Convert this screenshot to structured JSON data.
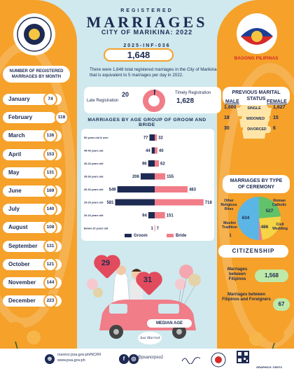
{
  "header": {
    "kicker": "REGISTERED",
    "title": "MARRIAGES",
    "subtitle": "CITY OF MARIKINA: 2022",
    "reference": "2025-INF-036",
    "total": "1,648",
    "description": "There were 1,648 total registered marriages in the City of Marikina that is equivalent to 5 marriages per day in 2022."
  },
  "registration": {
    "late_value": "20",
    "late_label": "Late Registration",
    "timely_label": "Timely Registration",
    "timely_value": "1,628"
  },
  "logos": {
    "left": "PHILIPPINE STATISTICS AUTHORITY",
    "right": "BAGONG PILIPINAS"
  },
  "months": {
    "title": "NUMBER OF REGISTERED MARRIAGES BY MONTH",
    "items": [
      {
        "label": "January",
        "value": "74"
      },
      {
        "label": "February",
        "value": "118"
      },
      {
        "label": "March",
        "value": "136"
      },
      {
        "label": "April",
        "value": "153"
      },
      {
        "label": "May",
        "value": "131"
      },
      {
        "label": "June",
        "value": "169"
      },
      {
        "label": "July",
        "value": "140"
      },
      {
        "label": "August",
        "value": "108"
      },
      {
        "label": "September",
        "value": "131"
      },
      {
        "label": "October",
        "value": "121"
      },
      {
        "label": "November",
        "value": "144"
      },
      {
        "label": "December",
        "value": "223"
      }
    ]
  },
  "previous_status": {
    "title": "PREVIOUS MARITAL STATUS",
    "male_label": "MALE",
    "female_label": "FEMALE",
    "rows": [
      {
        "label": "SINGLE",
        "male": "1,600",
        "female": "1,627"
      },
      {
        "label": "WIDOWED",
        "male": "18",
        "female": "15"
      },
      {
        "label": "DIVORCED",
        "male": "30",
        "female": "6"
      }
    ]
  },
  "ceremony": {
    "title": "MARRIAGES BY TYPE OF CEREMONY",
    "labels": {
      "other": "Other Religious Rites",
      "catholic": "Roman Catholic",
      "muslim": "Muslim Tradition",
      "civil": "Civil Wedding"
    },
    "values": {
      "other": "634",
      "catholic": "527",
      "muslim": "1",
      "civil": "486"
    }
  },
  "citizenship": {
    "title": "CITIZENSHIP",
    "filipino_label": "Marriages between Filipinos",
    "filipino_value": "1,568",
    "foreign_label": "Marriages between Filipinos and Foreigners",
    "foreign_value": "67"
  },
  "median_age": {
    "label": "MEDIAN AGE",
    "groom": "31",
    "bride": "29"
  },
  "car_sign": "Just Married",
  "footer": {
    "url1": "rssoncr.psa.gov.ph/NCRII",
    "url2": "www.psa.gov.ph",
    "social": "@psancrpso2",
    "credit": "GRAPHICS: CENT3"
  },
  "chart_data": {
    "type": "bar",
    "title": "MARRIAGES BY AGE GROUP OF GROOM AND BRIDE",
    "categories": [
      "50 years old & over",
      "45-49 years old",
      "40-44 years old",
      "35-39 years old",
      "30-34 years old",
      "25-29 years old",
      "20-24 years old",
      "Below 20 years old"
    ],
    "series": [
      {
        "name": "Groom",
        "values": [
          77,
          44,
          96,
          206,
          549,
          581,
          94,
          1
        ],
        "color": "#1d2a52"
      },
      {
        "name": "Bride",
        "values": [
          32,
          40,
          62,
          155,
          483,
          718,
          151,
          7
        ],
        "color": "#f07d88"
      }
    ],
    "legend_position": "bottom"
  },
  "colors": {
    "accent": "#f5a12a",
    "navy": "#1d2a52",
    "pink": "#f07d88",
    "sky": "#cfe9ef"
  }
}
